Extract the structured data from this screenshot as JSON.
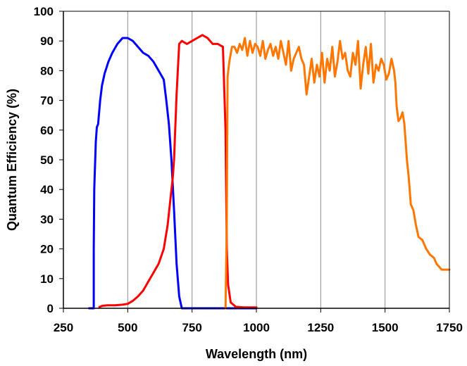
{
  "chart_data": {
    "type": "line",
    "title": "",
    "xlabel": "Wavelength (nm)",
    "ylabel": "Quantum Efficiency (%)",
    "xlim": [
      250,
      1750
    ],
    "ylim": [
      0,
      100
    ],
    "xticks": [
      250,
      500,
      750,
      1000,
      1250,
      1500,
      1750
    ],
    "yticks": [
      0,
      10,
      20,
      30,
      40,
      50,
      60,
      70,
      80,
      90,
      100
    ],
    "grid": "vertical",
    "legend": "none",
    "series": [
      {
        "color": "#0000ff",
        "x": [
          350,
          368,
          368,
          370,
          376,
          380,
          385,
          393,
          400,
          410,
          425,
          440,
          460,
          480,
          500,
          520,
          540,
          560,
          580,
          600,
          620,
          640,
          650,
          660,
          670,
          680,
          690,
          700,
          710,
          730,
          760,
          800,
          850,
          900,
          950,
          1000
        ],
        "y": [
          0,
          0,
          20,
          40,
          56,
          61,
          62,
          70,
          75,
          79,
          83,
          86,
          89,
          91,
          91,
          90,
          88,
          86,
          85,
          83,
          80,
          77,
          70,
          62,
          50,
          33,
          15,
          4,
          0,
          0,
          0,
          0,
          0,
          0,
          0,
          0
        ]
      },
      {
        "color": "#ff0000",
        "x": [
          390,
          400,
          420,
          450,
          480,
          500,
          520,
          540,
          560,
          580,
          600,
          620,
          640,
          655,
          665,
          675,
          680,
          690,
          700,
          710,
          730,
          750,
          770,
          790,
          810,
          830,
          850,
          870,
          880,
          885,
          890,
          900,
          920,
          950,
          980,
          1000
        ],
        "y": [
          0.4,
          0.8,
          1,
          1,
          1.2,
          1.5,
          2.5,
          4,
          6,
          9,
          12,
          15,
          20,
          28,
          36,
          44,
          50,
          72,
          89,
          90,
          89,
          90,
          91,
          92,
          91,
          89,
          89,
          88,
          60,
          20,
          8,
          2,
          0.5,
          0.3,
          0.3,
          0.3
        ]
      },
      {
        "color": "#ff7700",
        "x": [
          880,
          885,
          888,
          895,
          905,
          915,
          925,
          935,
          945,
          955,
          965,
          975,
          985,
          995,
          1005,
          1015,
          1025,
          1035,
          1045,
          1055,
          1065,
          1075,
          1085,
          1095,
          1105,
          1115,
          1125,
          1135,
          1145,
          1155,
          1165,
          1175,
          1185,
          1195,
          1205,
          1215,
          1225,
          1235,
          1245,
          1255,
          1265,
          1275,
          1285,
          1295,
          1305,
          1315,
          1325,
          1335,
          1345,
          1355,
          1365,
          1375,
          1385,
          1395,
          1405,
          1415,
          1425,
          1435,
          1445,
          1455,
          1465,
          1475,
          1485,
          1495,
          1505,
          1515,
          1525,
          1535,
          1540,
          1545,
          1552,
          1560,
          1568,
          1575,
          1585,
          1592,
          1600,
          1610,
          1620,
          1630,
          1645,
          1660,
          1675,
          1690,
          1700,
          1710,
          1720,
          1735,
          1750
        ],
        "y": [
          0,
          30,
          78,
          83,
          88,
          88,
          86,
          89,
          87,
          91,
          85,
          90,
          86,
          89,
          88,
          85,
          90,
          84,
          87,
          89,
          85,
          88,
          84,
          90,
          86,
          82,
          90,
          80,
          84,
          86,
          88,
          84,
          82,
          72,
          78,
          84,
          76,
          82,
          78,
          86,
          76,
          84,
          80,
          88,
          78,
          83,
          90,
          84,
          86,
          80,
          78,
          86,
          82,
          90,
          74,
          82,
          88,
          79,
          89,
          76,
          82,
          80,
          84,
          82,
          77,
          79,
          84,
          80,
          76,
          68,
          63,
          64,
          66,
          62,
          50,
          44,
          35,
          33,
          28,
          24,
          23,
          20,
          18,
          17,
          15,
          14,
          13,
          13,
          13
        ]
      }
    ]
  }
}
